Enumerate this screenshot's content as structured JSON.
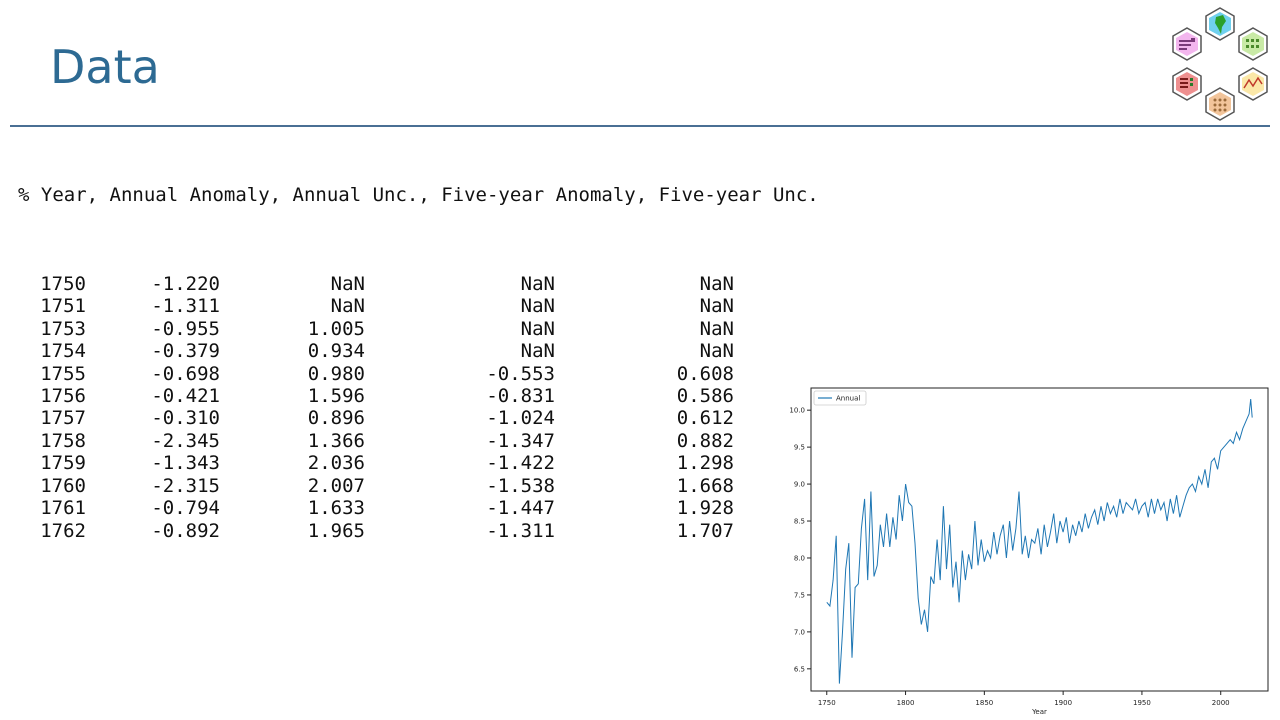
{
  "slide": {
    "title": "Data"
  },
  "table": {
    "header": "% Year, Annual Anomaly, Annual Unc., Five-year Anomaly, Five-year Unc.",
    "rows": [
      [
        "1750",
        "-1.220",
        "NaN",
        "NaN",
        "NaN"
      ],
      [
        "1751",
        "-1.311",
        "NaN",
        "NaN",
        "NaN"
      ],
      [
        "1753",
        "-0.955",
        "1.005",
        "NaN",
        "NaN"
      ],
      [
        "1754",
        "-0.379",
        "0.934",
        "NaN",
        "NaN"
      ],
      [
        "1755",
        "-0.698",
        "0.980",
        "-0.553",
        "0.608"
      ],
      [
        "1756",
        "-0.421",
        "1.596",
        "-0.831",
        "0.586"
      ],
      [
        "1757",
        "-0.310",
        "0.896",
        "-1.024",
        "0.612"
      ],
      [
        "1758",
        "-2.345",
        "1.366",
        "-1.347",
        "0.882"
      ],
      [
        "1759",
        "-1.343",
        "2.036",
        "-1.422",
        "1.298"
      ],
      [
        "1760",
        "-2.315",
        "2.007",
        "-1.538",
        "1.668"
      ],
      [
        "1761",
        "-0.794",
        "1.633",
        "-1.447",
        "1.928"
      ],
      [
        "1762",
        "-0.892",
        "1.965",
        "-1.311",
        "1.707"
      ]
    ]
  },
  "chart_data": {
    "type": "line",
    "xlabel": "Year",
    "ylabel": "",
    "xlim": [
      1740,
      2030
    ],
    "ylim": [
      6.2,
      10.3
    ],
    "xticks": [
      1750,
      1800,
      1850,
      1900,
      1950,
      2000
    ],
    "yticks": [
      6.5,
      7.0,
      7.5,
      8.0,
      8.5,
      9.0,
      9.5,
      10.0
    ],
    "legend": "top-left",
    "color": "#1f77b4",
    "series": [
      {
        "name": "Annual",
        "x": [
          1750,
          1752,
          1754,
          1756,
          1758,
          1760,
          1762,
          1764,
          1766,
          1768,
          1770,
          1772,
          1774,
          1776,
          1778,
          1780,
          1782,
          1784,
          1786,
          1788,
          1790,
          1792,
          1794,
          1796,
          1798,
          1800,
          1802,
          1804,
          1806,
          1808,
          1810,
          1812,
          1814,
          1816,
          1818,
          1820,
          1822,
          1824,
          1826,
          1828,
          1830,
          1832,
          1834,
          1836,
          1838,
          1840,
          1842,
          1844,
          1846,
          1848,
          1850,
          1852,
          1854,
          1856,
          1858,
          1860,
          1862,
          1864,
          1866,
          1868,
          1870,
          1872,
          1874,
          1876,
          1878,
          1880,
          1882,
          1884,
          1886,
          1888,
          1890,
          1892,
          1894,
          1896,
          1898,
          1900,
          1902,
          1904,
          1906,
          1908,
          1910,
          1912,
          1914,
          1916,
          1918,
          1920,
          1922,
          1924,
          1926,
          1928,
          1930,
          1932,
          1934,
          1936,
          1938,
          1940,
          1942,
          1944,
          1946,
          1948,
          1950,
          1952,
          1954,
          1956,
          1958,
          1960,
          1962,
          1964,
          1966,
          1968,
          1970,
          1972,
          1974,
          1976,
          1978,
          1980,
          1982,
          1984,
          1986,
          1988,
          1990,
          1992,
          1994,
          1996,
          1998,
          2000,
          2002,
          2004,
          2006,
          2008,
          2010,
          2012,
          2014,
          2016,
          2018,
          2019,
          2020
        ],
        "values": [
          7.4,
          7.35,
          7.7,
          8.3,
          6.3,
          7.0,
          7.85,
          8.2,
          6.65,
          7.6,
          7.65,
          8.4,
          8.8,
          7.7,
          8.9,
          7.75,
          7.9,
          8.45,
          8.15,
          8.6,
          8.15,
          8.55,
          8.25,
          8.85,
          8.5,
          9.0,
          8.75,
          8.7,
          8.2,
          7.45,
          7.1,
          7.3,
          7.0,
          7.75,
          7.65,
          8.25,
          7.7,
          8.7,
          7.85,
          8.45,
          7.6,
          7.95,
          7.4,
          8.1,
          7.7,
          8.05,
          7.85,
          8.5,
          7.9,
          8.25,
          7.95,
          8.1,
          8.0,
          8.35,
          8.05,
          8.3,
          8.45,
          8.0,
          8.5,
          8.1,
          8.4,
          8.9,
          8.05,
          8.3,
          8.0,
          8.25,
          8.2,
          8.4,
          8.05,
          8.45,
          8.15,
          8.35,
          8.6,
          8.2,
          8.5,
          8.35,
          8.55,
          8.2,
          8.45,
          8.3,
          8.5,
          8.35,
          8.6,
          8.4,
          8.55,
          8.65,
          8.45,
          8.7,
          8.5,
          8.75,
          8.6,
          8.7,
          8.55,
          8.8,
          8.6,
          8.75,
          8.7,
          8.65,
          8.8,
          8.6,
          8.7,
          8.75,
          8.55,
          8.8,
          8.6,
          8.8,
          8.65,
          8.75,
          8.5,
          8.8,
          8.6,
          8.85,
          8.55,
          8.7,
          8.85,
          8.95,
          9.0,
          8.9,
          9.1,
          9.0,
          9.2,
          8.95,
          9.3,
          9.35,
          9.2,
          9.45,
          9.5,
          9.55,
          9.6,
          9.55,
          9.7,
          9.6,
          9.75,
          9.85,
          9.95,
          10.15,
          9.9
        ]
      }
    ]
  }
}
